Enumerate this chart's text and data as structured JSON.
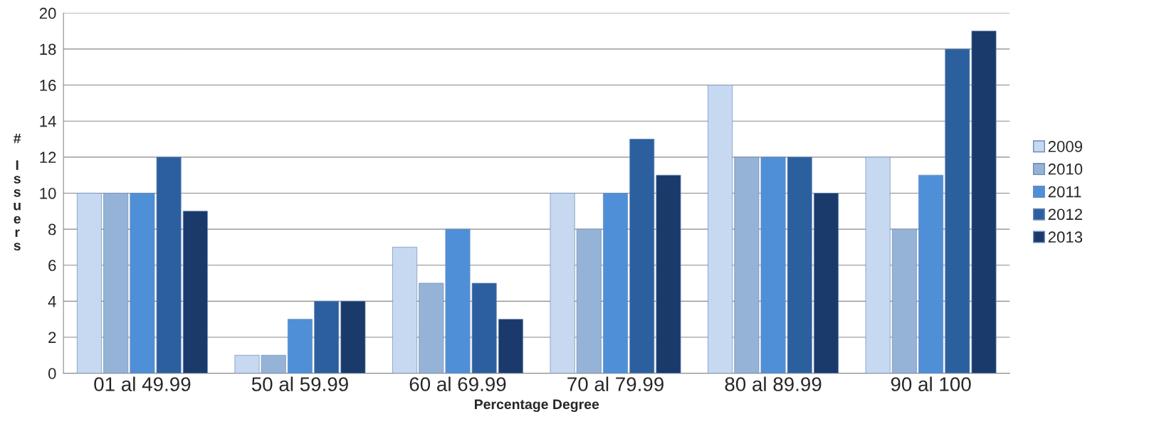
{
  "chart_data": {
    "type": "bar",
    "xlabel": "Percentage Degree",
    "ylabel": "# Issuers",
    "categories": [
      "01 al 49.99",
      "50 al 59.99",
      "60 al 69.99",
      "70 al 79.99",
      "80 al 89.99",
      "90 al 100"
    ],
    "series": [
      {
        "name": "2009",
        "color": "#c6d9f1",
        "values": [
          10,
          1,
          7,
          10,
          16,
          12
        ]
      },
      {
        "name": "2010",
        "color": "#95b3d7",
        "values": [
          10,
          1,
          5,
          8,
          12,
          8
        ]
      },
      {
        "name": "2011",
        "color": "#4f8fd8",
        "values": [
          10,
          3,
          8,
          10,
          12,
          11
        ]
      },
      {
        "name": "2012",
        "color": "#2c5f9e",
        "values": [
          12,
          4,
          5,
          13,
          12,
          18
        ]
      },
      {
        "name": "2013",
        "color": "#1a3a6c",
        "values": [
          9,
          4,
          3,
          11,
          10,
          19
        ]
      }
    ],
    "ylim": [
      0,
      20
    ],
    "yticks": [
      0,
      2,
      4,
      6,
      8,
      10,
      12,
      14,
      16,
      18,
      20
    ],
    "grid": "y",
    "legend": "right"
  }
}
